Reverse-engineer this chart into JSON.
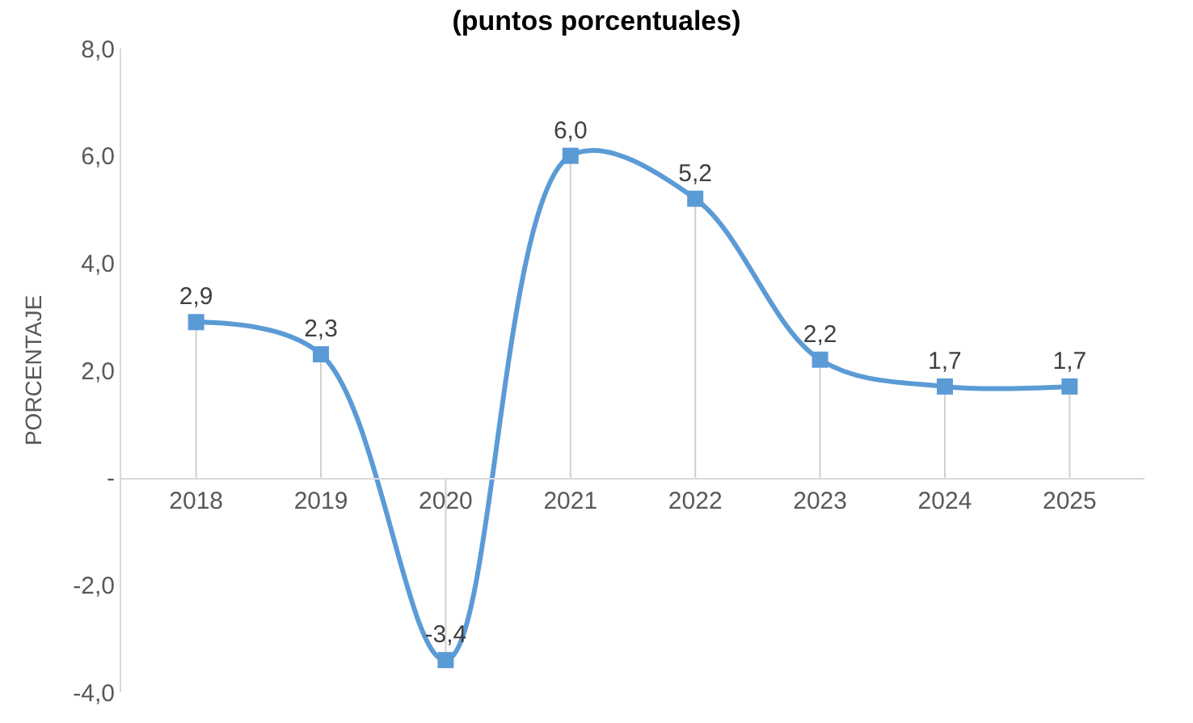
{
  "chart_data": {
    "type": "line",
    "title": "(puntos porcentuales)",
    "ylabel": "PORCENTAJE",
    "categories": [
      "2018",
      "2019",
      "2020",
      "2021",
      "2022",
      "2023",
      "2024",
      "2025"
    ],
    "series": [
      {
        "color": "#5b9bd5",
        "values": [
          2.9,
          2.3,
          -3.4,
          6.0,
          5.2,
          2.2,
          1.7,
          1.7
        ],
        "value_labels": [
          "2,9",
          "2,3",
          "-3,4",
          "6,0",
          "5,2",
          "2,2",
          "1,7",
          "1,7"
        ]
      }
    ],
    "ylim": [
      -4,
      8
    ],
    "yticks": [
      {
        "value": -4,
        "label": "-4,0"
      },
      {
        "value": -2,
        "label": "-2,0"
      },
      {
        "value": 0,
        "label": "-"
      },
      {
        "value": 2,
        "label": "2,0"
      },
      {
        "value": 4,
        "label": "4,0"
      },
      {
        "value": 6,
        "label": "6,0"
      },
      {
        "value": 8,
        "label": "8,0"
      }
    ],
    "marker": "square",
    "line_style": "solid",
    "grid": false,
    "legend": false
  }
}
